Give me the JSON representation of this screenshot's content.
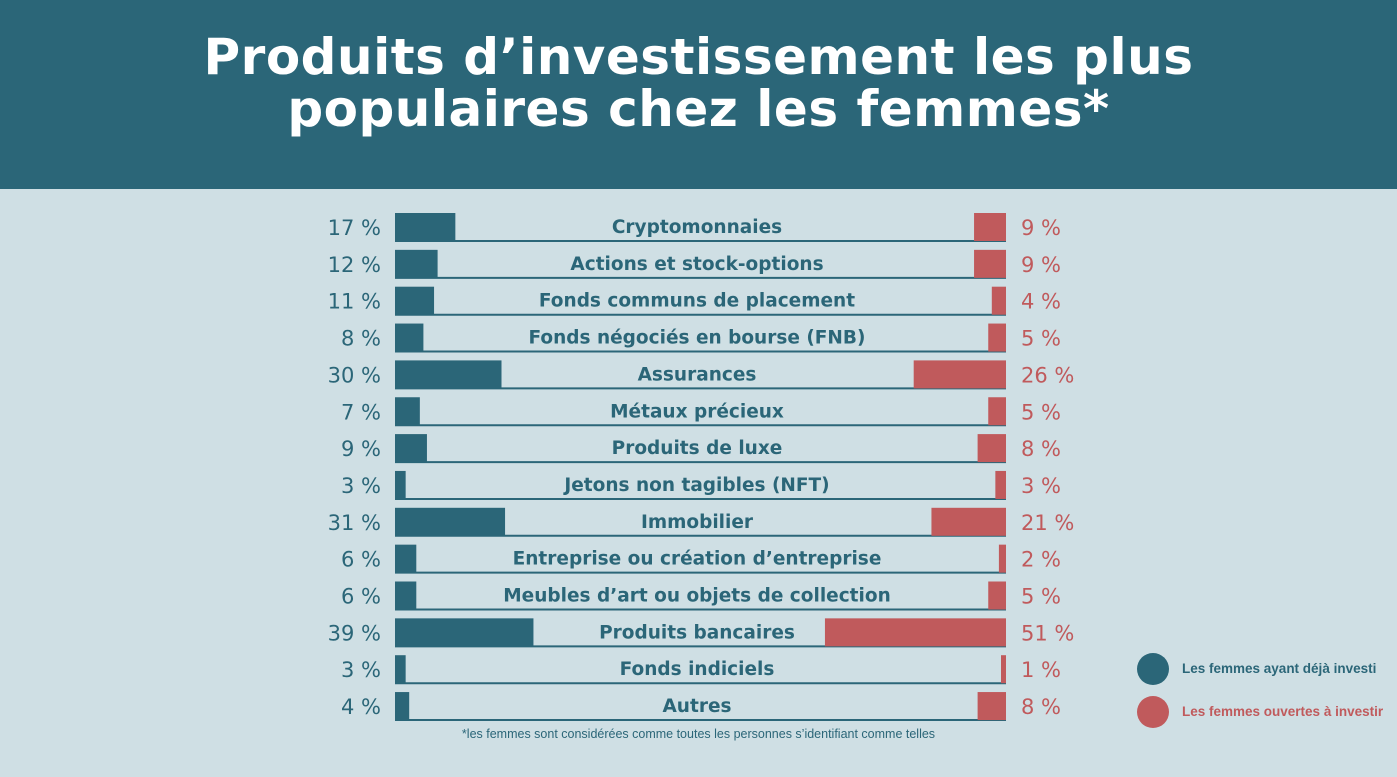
{
  "header": {
    "title_line1": "Produits d’investissement les plus",
    "title_line2": "populaires chez les femmes*"
  },
  "colors": {
    "header_bg": "#2b6678",
    "background": "#cfdfe4",
    "invested": "#2b6678",
    "open": "#c05a5c"
  },
  "footnote": "*les femmes sont considérées comme toutes les personnes s’identifiant comme telles",
  "legend": {
    "invested_label": "Les femmes ayant déjà investi",
    "open_label": "Les femmes ouvertes à investir"
  },
  "chart_data": {
    "type": "bar",
    "title": "Produits d’investissement les plus populaires chez les femmes*",
    "categories": [
      "Cryptomonnaies",
      "Actions et stock-options",
      "Fonds communs de placement",
      "Fonds négociés en bourse (FNB)",
      "Assurances",
      "Métaux précieux",
      "Produits de luxe",
      "Jetons non tagibles (NFT)",
      "Immobilier",
      "Entreprise ou création d’entreprise",
      "Meubles d’art ou objets de collection",
      "Produits bancaires",
      "Fonds indiciels",
      "Autres"
    ],
    "series": [
      {
        "name": "Les femmes ayant déjà investi",
        "values": [
          17,
          12,
          11,
          8,
          30,
          7,
          9,
          3,
          31,
          6,
          6,
          39,
          3,
          4
        ],
        "labels": [
          "17 %",
          "12 %",
          "11 %",
          "8 %",
          "30 %",
          "7 %",
          "9 %",
          "3 %",
          "31 %",
          "6 %",
          "6 %",
          "39 %",
          "3 %",
          "4 %"
        ]
      },
      {
        "name": "Les femmes ouvertes à investir",
        "values": [
          9,
          9,
          4,
          5,
          26,
          5,
          8,
          3,
          21,
          2,
          5,
          51,
          1,
          8
        ],
        "labels": [
          "9 %",
          "9 %",
          "4 %",
          "5 %",
          "26 %",
          "5 %",
          "8 %",
          "3 %",
          "21 %",
          "2 %",
          "5 %",
          "51 %",
          "1 %",
          "8 %"
        ]
      }
    ],
    "grid": false,
    "legend_position": "bottom-right"
  }
}
